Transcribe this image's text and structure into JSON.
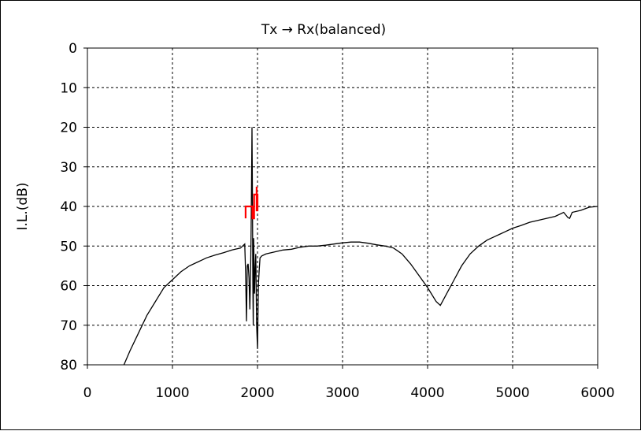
{
  "chart_data": {
    "type": "line",
    "title": "Tx → Rx(balanced)",
    "xlabel": "",
    "ylabel": "I.L.(dB)",
    "xlim": [
      0,
      6000
    ],
    "ylim": [
      0,
      80
    ],
    "y_inverted": true,
    "x_ticks": [
      0,
      1000,
      2000,
      3000,
      4000,
      5000,
      6000
    ],
    "y_ticks": [
      0,
      10,
      20,
      30,
      40,
      50,
      60,
      70,
      80
    ],
    "grid": "dashed",
    "legend": "none",
    "series": [
      {
        "color": "#000000",
        "x": [
          430,
          500,
          600,
          700,
          800,
          900,
          1000,
          1100,
          1200,
          1300,
          1400,
          1500,
          1600,
          1700,
          1800,
          1850,
          1860,
          1870,
          1880,
          1890,
          1900,
          1910,
          1920,
          1925,
          1930,
          1935,
          1940,
          1945,
          1950,
          1955,
          1960,
          1965,
          1970,
          1980,
          1990,
          2000,
          2010,
          2020,
          2030,
          2050,
          2100,
          2200,
          2300,
          2400,
          2500,
          2600,
          2700,
          2800,
          2900,
          3000,
          3100,
          3200,
          3300,
          3400,
          3500,
          3600,
          3700,
          3800,
          3900,
          4000,
          4100,
          4150,
          4200,
          4300,
          4400,
          4500,
          4600,
          4700,
          4800,
          4900,
          5000,
          5100,
          5200,
          5300,
          5400,
          5500,
          5600,
          5650,
          5670,
          5700,
          5800,
          5900,
          6000
        ],
        "y": [
          80,
          76.5,
          72,
          67.5,
          64,
          60.5,
          58.5,
          56.5,
          55,
          54,
          53,
          52.3,
          51.7,
          51,
          50.5,
          49.5,
          57,
          69,
          55,
          54.5,
          58,
          66,
          54,
          46,
          35,
          20,
          35,
          60,
          70,
          48,
          55,
          62,
          57,
          52,
          70,
          76,
          60,
          56,
          53,
          52.5,
          52,
          51.5,
          51,
          50.8,
          50.3,
          50,
          50,
          49.8,
          49.5,
          49.2,
          49,
          49,
          49.3,
          49.7,
          50,
          50.5,
          52,
          54.5,
          57.5,
          60.5,
          64,
          65,
          63,
          59,
          55,
          52,
          50,
          48.5,
          47.5,
          46.5,
          45.5,
          44.8,
          44,
          43.5,
          43,
          42.5,
          41.5,
          42.8,
          43,
          41.5,
          41,
          40.2,
          40
        ]
      },
      {
        "color": "#ff0000",
        "x": [
          1860,
          1860,
          1940,
          1940,
          1960,
          1960,
          2000,
          2000,
          1990,
          1990
        ],
        "y": [
          43,
          40,
          40,
          43,
          43,
          37,
          37,
          41,
          41,
          35
        ]
      }
    ]
  }
}
